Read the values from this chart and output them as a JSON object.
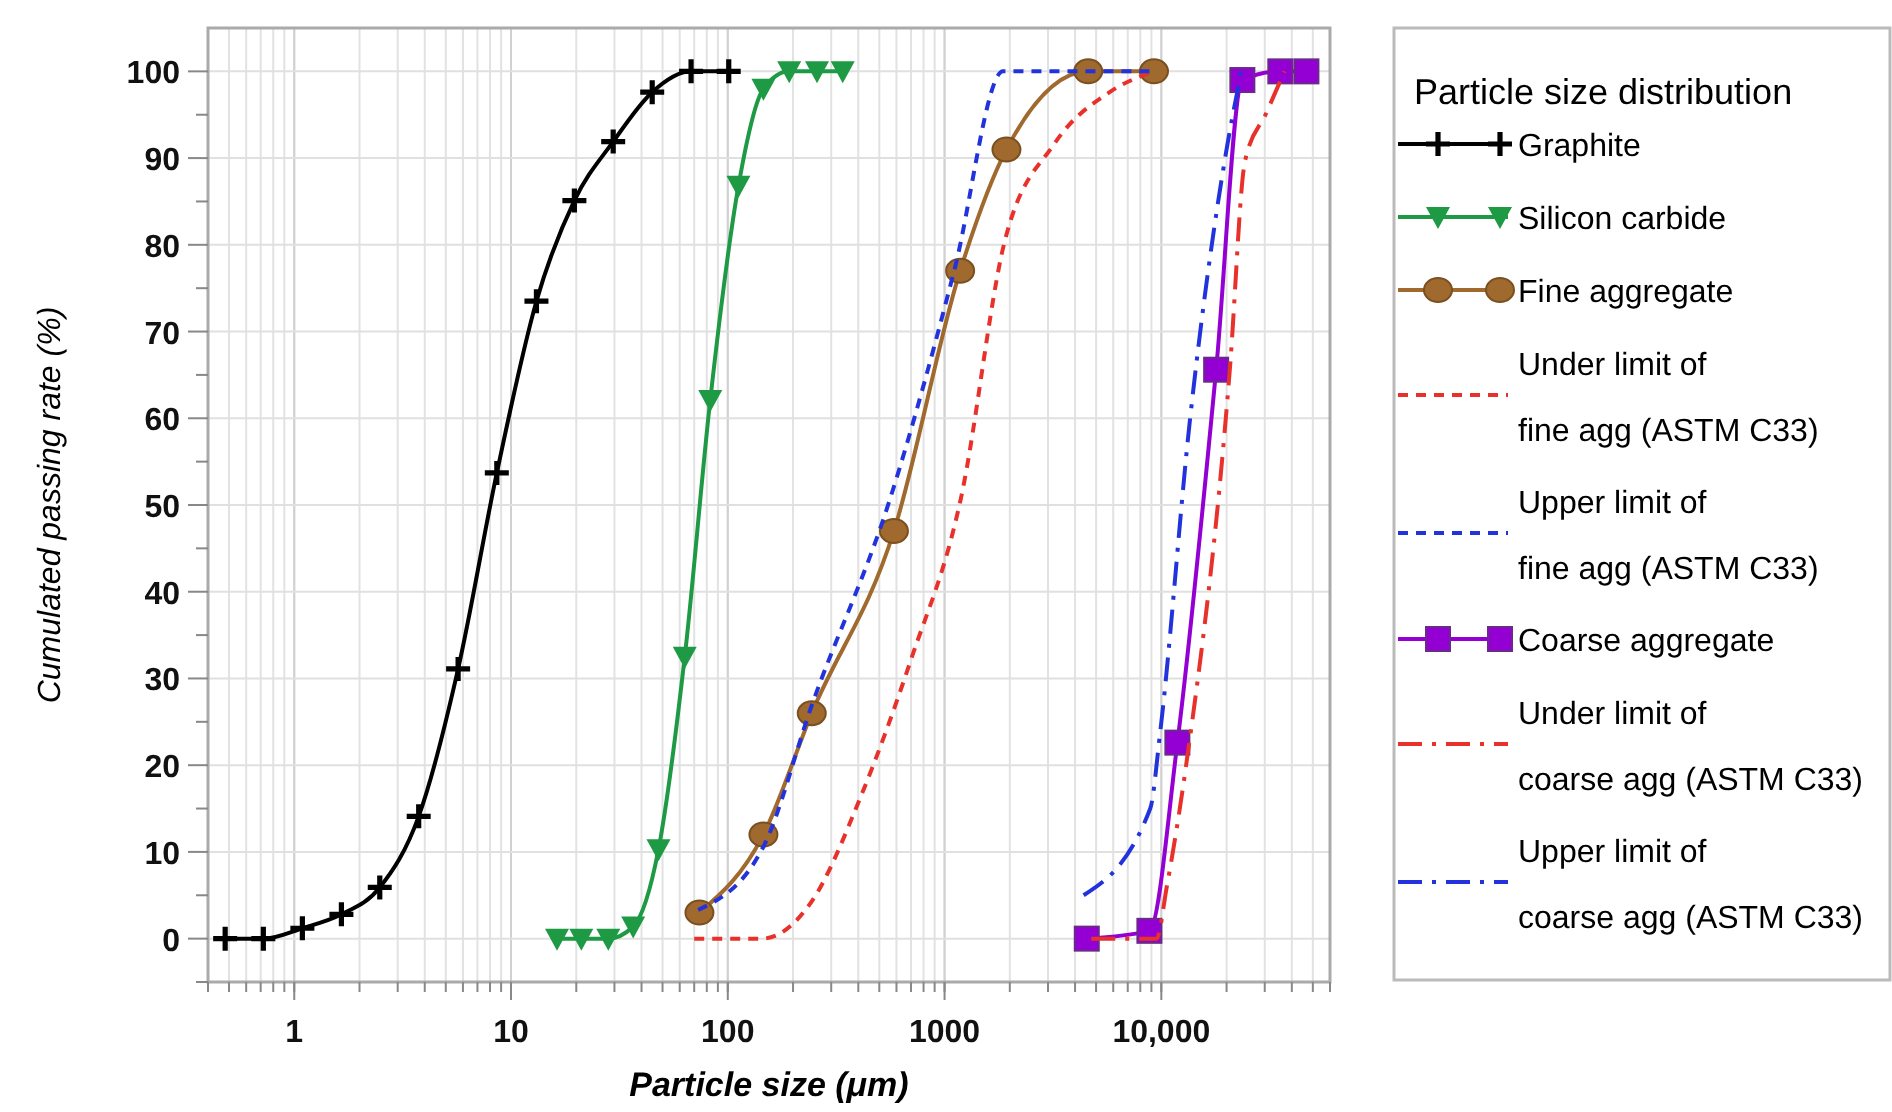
{
  "chart_data": {
    "type": "line",
    "xlabel": "Particle size (μm)",
    "ylabel": "Cumulated passing rate (%)",
    "legend_title": "Particle size distribution",
    "log": "x",
    "grid": true,
    "legend": "right",
    "xlim": [
      0.4,
      60000
    ],
    "xticks": [
      1,
      10,
      100,
      1000,
      {
        "value": 10000,
        "label": "10,000"
      }
    ],
    "ylim": [
      -5,
      105
    ],
    "yticks": [
      0,
      10,
      20,
      30,
      40,
      50,
      60,
      70,
      80,
      90,
      100
    ],
    "series": [
      {
        "name": "Graphite",
        "color": "#000000",
        "marker": "cross",
        "line_style": "solid",
        "x": [
          0.48,
          0.72,
          1.09,
          1.65,
          2.48,
          3.75,
          5.7,
          8.6,
          13.1,
          19.6,
          29.6,
          44.8,
          67.7,
          101
        ],
        "values": [
          0,
          0,
          1.2,
          2.8,
          5.9,
          14.1,
          31.1,
          53.7,
          73.5,
          85.1,
          91.9,
          97.6,
          100,
          100
        ]
      },
      {
        "name": "Silicon carbide",
        "color": "#1e9a45",
        "marker": "triangle",
        "line_style": "solid",
        "x": [
          16.3,
          21.1,
          28.1,
          36.6,
          47.9,
          63.3,
          83,
          112,
          146,
          192,
          258,
          339
        ],
        "values": [
          0,
          0,
          0,
          1.4,
          10.3,
          32.5,
          62.1,
          86.8,
          98,
          100,
          100,
          100
        ]
      },
      {
        "name": "Fine aggregate",
        "color": "#a0692e",
        "marker": "circle",
        "line_style": "solid",
        "x": [
          74,
          146,
          244,
          584,
          1180,
          1930,
          4600,
          9250
        ],
        "values": [
          3,
          12,
          26,
          47,
          77,
          91,
          100,
          100
        ]
      },
      {
        "name": "Under limit of fine agg (ASTM C33)",
        "color": "#e8312a",
        "marker": "none",
        "line_style": "dashed",
        "x": [
          70,
          144,
          244,
          414,
          703,
          1195,
          1890,
          3200,
          5850,
          9250
        ],
        "values": [
          0,
          0,
          4.3,
          16.6,
          32.3,
          51,
          80.3,
          91.6,
          97.7,
          100
        ]
      },
      {
        "name": "Upper limit of fine agg (ASTM C33)",
        "color": "#2233dd",
        "marker": "none",
        "line_style": "dashed",
        "x": [
          73,
          146,
          244,
          562,
          1110,
          1860,
          9250
        ],
        "values": [
          3.3,
          10.6,
          26.9,
          50.8,
          77.1,
          100,
          100
        ]
      },
      {
        "name": "Coarse aggregate",
        "color": "#9400d3",
        "marker": "square",
        "line_style": "solid",
        "x": [
          4530,
          8810,
          11860,
          17900,
          23650,
          35400,
          46700
        ],
        "values": [
          0,
          0.9,
          22.6,
          65.6,
          99,
          100,
          100
        ]
      },
      {
        "name": "Under limit of coarse agg (ASTM C33)",
        "color": "#e8312a",
        "marker": "none",
        "line_style": "dashdot",
        "x": [
          4750,
          9500,
          10600,
          13100,
          20700,
          24300,
          30500,
          37000
        ],
        "values": [
          0,
          0,
          6,
          20.5,
          65.6,
          89.6,
          95.2,
          100
        ]
      },
      {
        "name": "Upper limit of coarse agg (ASTM C33)",
        "color": "#2233dd",
        "marker": "none",
        "line_style": "dashdot",
        "x": [
          4380,
          8890,
          9860,
          13580,
          20000,
          23400
        ],
        "values": [
          5,
          15,
          23.6,
          60,
          91,
          100
        ]
      }
    ]
  }
}
